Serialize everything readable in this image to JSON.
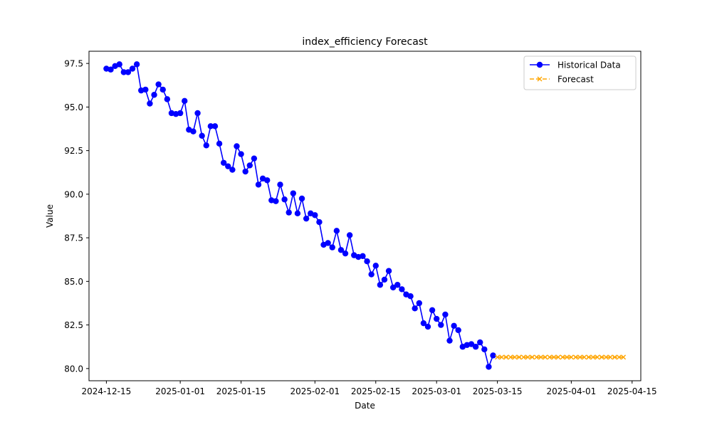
{
  "chart_data": {
    "type": "line",
    "title": "index_efficiency Forecast",
    "xlabel": "Date",
    "ylabel": "Value",
    "xlim": [
      "2024-12-11",
      "2025-04-17"
    ],
    "ylim": [
      79.3,
      98.2
    ],
    "x_ticks": [
      {
        "date": "2024-12-15",
        "label": "2024-12-15"
      },
      {
        "date": "2025-01-01",
        "label": "2025-01-01"
      },
      {
        "date": "2025-01-15",
        "label": "2025-01-15"
      },
      {
        "date": "2025-02-01",
        "label": "2025-02-01"
      },
      {
        "date": "2025-02-15",
        "label": "2025-02-15"
      },
      {
        "date": "2025-03-01",
        "label": "2025-03-01"
      },
      {
        "date": "2025-03-15",
        "label": "2025-03-15"
      },
      {
        "date": "2025-04-01",
        "label": "2025-04-01"
      },
      {
        "date": "2025-04-15",
        "label": "2025-04-15"
      }
    ],
    "y_ticks": [
      {
        "value": 80.0,
        "label": "80.0"
      },
      {
        "value": 82.5,
        "label": "82.5"
      },
      {
        "value": 85.0,
        "label": "85.0"
      },
      {
        "value": 87.5,
        "label": "87.5"
      },
      {
        "value": 90.0,
        "label": "90.0"
      },
      {
        "value": 92.5,
        "label": "92.5"
      },
      {
        "value": 95.0,
        "label": "95.0"
      },
      {
        "value": 97.5,
        "label": "97.5"
      }
    ],
    "grid": false,
    "legend_position": "top-right",
    "series": [
      {
        "name": "Historical Data",
        "color": "#0000ff",
        "marker": "circle",
        "line_style": "solid",
        "start_date": "2024-12-15",
        "step_days": 1,
        "values": [
          97.2,
          97.15,
          97.35,
          97.45,
          97.0,
          97.0,
          97.2,
          97.45,
          95.95,
          96.0,
          95.2,
          95.7,
          96.3,
          96.0,
          95.45,
          94.65,
          94.6,
          94.65,
          95.35,
          93.7,
          93.6,
          94.65,
          93.35,
          92.8,
          93.9,
          93.9,
          92.9,
          91.8,
          91.6,
          91.4,
          92.75,
          92.3,
          91.3,
          91.65,
          92.05,
          90.55,
          90.9,
          90.8,
          89.65,
          89.6,
          90.55,
          89.7,
          88.95,
          90.05,
          88.9,
          89.75,
          88.6,
          88.9,
          88.8,
          88.4,
          87.1,
          87.2,
          86.95,
          87.9,
          86.8,
          86.6,
          87.65,
          86.5,
          86.4,
          86.45,
          86.15,
          85.4,
          85.9,
          84.8,
          85.1,
          85.6,
          84.65,
          84.8,
          84.55,
          84.25,
          84.15,
          83.45,
          83.75,
          82.6,
          82.4,
          83.35,
          82.85,
          82.5,
          83.1,
          81.6,
          82.45,
          82.2,
          81.25,
          81.35,
          81.4,
          81.25,
          81.5,
          81.1,
          80.1,
          80.75
        ]
      },
      {
        "name": "Forecast",
        "color": "#ffa500",
        "marker": "x",
        "line_style": "dashed",
        "start_date": "2025-03-15",
        "step_days": 1,
        "values": [
          80.65,
          80.65,
          80.65,
          80.65,
          80.65,
          80.65,
          80.65,
          80.65,
          80.65,
          80.65,
          80.65,
          80.65,
          80.65,
          80.65,
          80.65,
          80.65,
          80.65,
          80.65,
          80.65,
          80.65,
          80.65,
          80.65,
          80.65,
          80.65,
          80.65,
          80.65,
          80.65,
          80.65,
          80.65,
          80.65
        ]
      }
    ]
  }
}
